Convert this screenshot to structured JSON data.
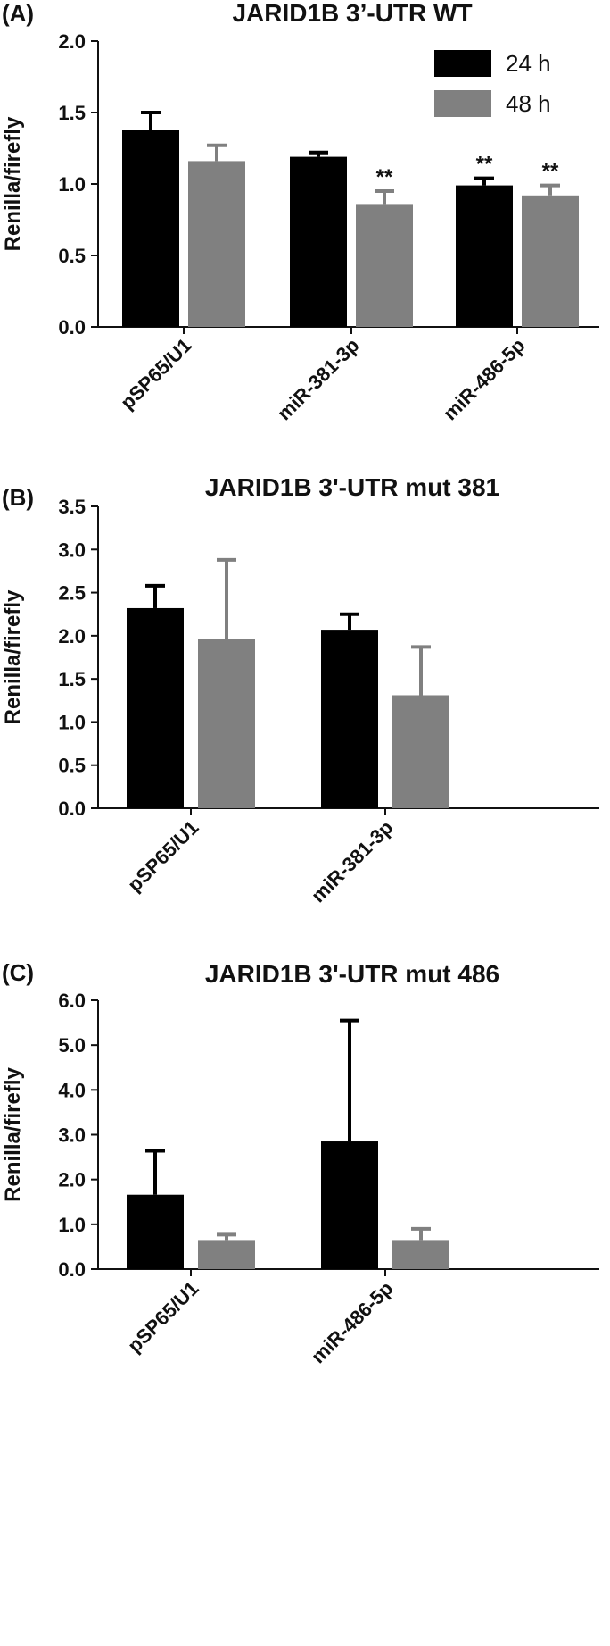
{
  "colors": {
    "h24": "#000000",
    "h48": "#808080",
    "axis": "#111111"
  },
  "legend": {
    "h24_label": "24 h",
    "h48_label": "48 h"
  },
  "chart_data": [
    {
      "type": "bar",
      "panel": "(A)",
      "title": "JARID1B 3’-UTR WT",
      "ylabel": "Renilla/firefly",
      "ylim": [
        0,
        2.0
      ],
      "yticks": [
        "0.0",
        "0.5",
        "1.0",
        "1.5",
        "2.0"
      ],
      "categories": [
        "pSP65/U1",
        "miR-381-3p",
        "miR-486-5p"
      ],
      "series": [
        {
          "name": "24 h",
          "values": [
            1.38,
            1.19,
            0.99
          ],
          "errors": [
            0.12,
            0.03,
            0.05
          ],
          "significance": [
            "",
            "",
            "**"
          ]
        },
        {
          "name": "48 h",
          "values": [
            1.16,
            0.86,
            0.92
          ],
          "errors": [
            0.11,
            0.09,
            0.07
          ],
          "significance": [
            "",
            "**",
            "**"
          ]
        }
      ],
      "legend": "top-right"
    },
    {
      "type": "bar",
      "panel": "(B)",
      "title": "JARID1B 3'-UTR mut 381",
      "ylabel": "Renilla/firefly",
      "ylim": [
        0,
        3.5
      ],
      "yticks": [
        "0.0",
        "0.5",
        "1.0",
        "1.5",
        "2.0",
        "2.5",
        "3.0",
        "3.5"
      ],
      "categories": [
        "pSP65/U1",
        "miR-381-3p"
      ],
      "series": [
        {
          "name": "24 h",
          "values": [
            2.32,
            2.07
          ],
          "errors": [
            0.26,
            0.18
          ]
        },
        {
          "name": "48 h",
          "values": [
            1.96,
            1.31
          ],
          "errors": [
            0.92,
            0.56
          ]
        }
      ]
    },
    {
      "type": "bar",
      "panel": "(C)",
      "title": "JARID1B 3'-UTR mut 486",
      "ylabel": "Renilla/firefly",
      "ylim": [
        0,
        6.0
      ],
      "yticks": [
        "0.0",
        "1.0",
        "2.0",
        "3.0",
        "4.0",
        "5.0",
        "6.0"
      ],
      "categories": [
        "pSP65/U1",
        "miR-486-5p"
      ],
      "series": [
        {
          "name": "24 h",
          "values": [
            1.66,
            2.85
          ],
          "errors": [
            0.98,
            2.7
          ]
        },
        {
          "name": "48 h",
          "values": [
            0.65,
            0.65
          ],
          "errors": [
            0.12,
            0.25
          ]
        }
      ]
    }
  ]
}
